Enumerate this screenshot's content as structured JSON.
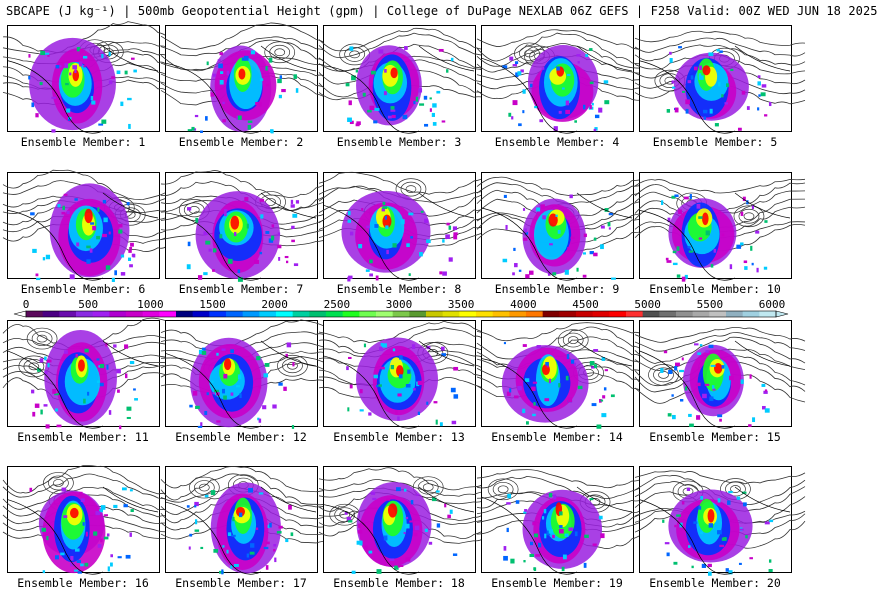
{
  "header": {
    "title": "SBCAPE (J kg⁻¹) | 500mb Geopotential Height (gpm) | College of DuPage NEXLAB 06Z GEFS | F258 Valid: 00Z WED JUN 18 2025"
  },
  "colorbar": {
    "tick_labels": [
      "0",
      "500",
      "1000",
      "1500",
      "2000",
      "2500",
      "3000",
      "3500",
      "4000",
      "4500",
      "5000",
      "5500",
      "6000"
    ],
    "colors": [
      "#5c0a5c",
      "#4b0082",
      "#6a0dad",
      "#8a2be2",
      "#a020f0",
      "#b000d0",
      "#c800c8",
      "#e000e0",
      "#ff00ff",
      "#00007f",
      "#0000c8",
      "#0033ff",
      "#0066ff",
      "#0099ff",
      "#00ccff",
      "#00ffff",
      "#00d0a0",
      "#00c070",
      "#00e050",
      "#20ff20",
      "#70ff50",
      "#a0ff70",
      "#7cc84a",
      "#5a9a30",
      "#c8c800",
      "#e0e000",
      "#ffff00",
      "#ffe000",
      "#ffc000",
      "#ff9900",
      "#ff7700",
      "#7f0000",
      "#a00000",
      "#c80000",
      "#e00000",
      "#ff0000",
      "#ff3030",
      "#505050",
      "#707070",
      "#909090",
      "#a8a8a8",
      "#c0c0c0",
      "#90b0c0",
      "#a0d0e0",
      "#c0e8f0"
    ]
  },
  "members": [
    {
      "label": "Ensemble Member: 1"
    },
    {
      "label": "Ensemble Member: 2"
    },
    {
      "label": "Ensemble Member: 3"
    },
    {
      "label": "Ensemble Member: 4"
    },
    {
      "label": "Ensemble Member: 5"
    },
    {
      "label": "Ensemble Member: 6"
    },
    {
      "label": "Ensemble Member: 7"
    },
    {
      "label": "Ensemble Member: 8"
    },
    {
      "label": "Ensemble Member: 9"
    },
    {
      "label": "Ensemble Member: 10"
    },
    {
      "label": "Ensemble Member: 11"
    },
    {
      "label": "Ensemble Member: 12"
    },
    {
      "label": "Ensemble Member: 13"
    },
    {
      "label": "Ensemble Member: 14"
    },
    {
      "label": "Ensemble Member: 15"
    },
    {
      "label": "Ensemble Member: 16"
    },
    {
      "label": "Ensemble Member: 17"
    },
    {
      "label": "Ensemble Member: 18"
    },
    {
      "label": "Ensemble Member: 19"
    },
    {
      "label": "Ensemble Member: 20"
    }
  ]
}
